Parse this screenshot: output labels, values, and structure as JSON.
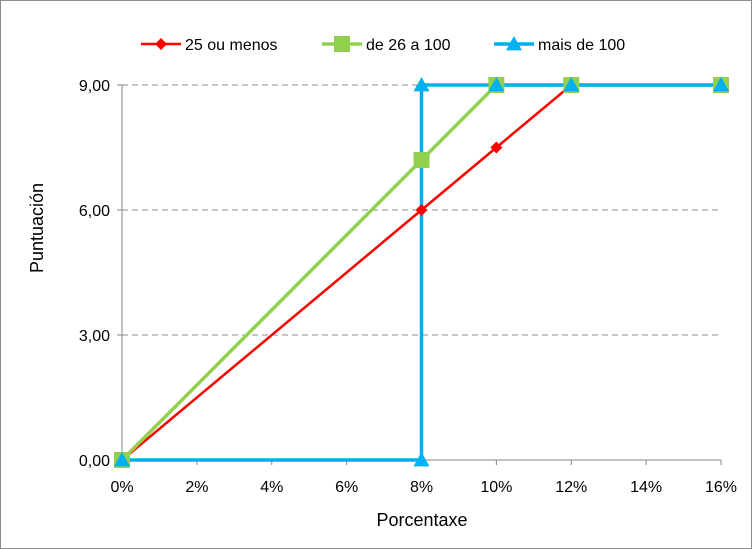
{
  "chart_data": {
    "type": "line",
    "title": "",
    "xlabel": "Porcentaxe",
    "ylabel": "Puntuación",
    "xlim": [
      0,
      16
    ],
    "ylim": [
      0,
      9
    ],
    "x_ticks": [
      0,
      2,
      4,
      6,
      8,
      10,
      12,
      14,
      16
    ],
    "x_tick_labels": [
      "0%",
      "2%",
      "4%",
      "6%",
      "8%",
      "10%",
      "12%",
      "14%",
      "16%"
    ],
    "y_ticks": [
      0,
      3,
      6,
      9
    ],
    "y_tick_labels": [
      "0,00",
      "3,00",
      "6,00",
      "9,00"
    ],
    "grid": "horizontal dashed",
    "legend_position": "top",
    "series": [
      {
        "name": "25 ou menos",
        "color": "#ff0000",
        "marker": "diamond",
        "points": [
          [
            0,
            0
          ],
          [
            8,
            6
          ],
          [
            10,
            7.5
          ],
          [
            12,
            9
          ],
          [
            16,
            9
          ]
        ]
      },
      {
        "name": "de 26 a 100",
        "color": "#92d050",
        "marker": "square",
        "points": [
          [
            0,
            0
          ],
          [
            8,
            7.2
          ],
          [
            10,
            9
          ],
          [
            12,
            9
          ],
          [
            16,
            9
          ]
        ]
      },
      {
        "name": "mais de 100",
        "color": "#00b0f0",
        "marker": "triangle",
        "points": [
          [
            0,
            0
          ],
          [
            8,
            0
          ],
          [
            8,
            9
          ],
          [
            10,
            9
          ],
          [
            12,
            9
          ],
          [
            16,
            9
          ]
        ]
      }
    ]
  }
}
